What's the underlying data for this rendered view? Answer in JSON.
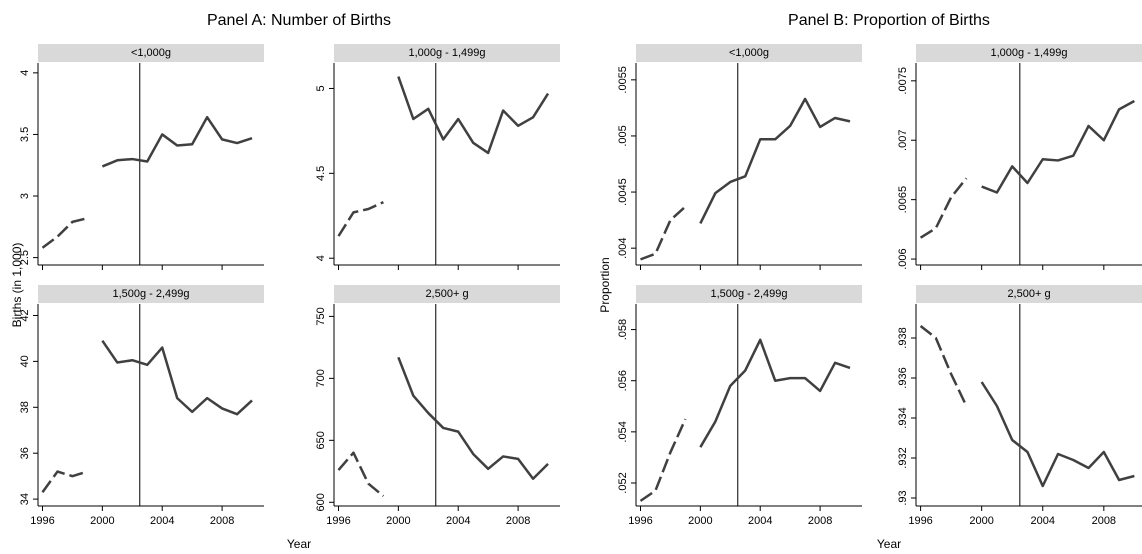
{
  "panels": [
    {
      "title": "Panel A: Number of Births",
      "ylabel": "Births (in 1,000)",
      "xlabel": "Year"
    },
    {
      "title": "Panel B: Proportion of Births",
      "ylabel": "Proportion",
      "xlabel": "Year"
    }
  ],
  "chart_data": [
    {
      "type": "line",
      "title": "<1,000g",
      "x": [
        1996,
        1997,
        1998,
        1999,
        2000,
        2001,
        2002,
        2003,
        2004,
        2005,
        2006,
        2007,
        2008,
        2009,
        2010
      ],
      "series": [
        {
          "color": "#404040",
          "dash": true,
          "values": [
            2.58,
            2.67,
            2.79,
            2.82,
            null,
            null,
            null,
            null,
            null,
            null,
            null,
            null,
            null,
            null,
            null
          ]
        },
        {
          "color": "#404040",
          "values": [
            null,
            null,
            null,
            null,
            3.24,
            3.29,
            3.3,
            3.28,
            3.5,
            3.41,
            3.42,
            3.64,
            3.46,
            3.43,
            3.47
          ]
        }
      ],
      "xlim": [
        1995.7,
        2010.8
      ],
      "xticks": [
        1996,
        2000,
        2004,
        2008
      ],
      "ylim": [
        2.44,
        4.08
      ],
      "yticks": [
        2.5,
        3,
        3.5,
        4
      ],
      "vline": 2002.5
    },
    {
      "type": "line",
      "title": "1,000g - 1,499g",
      "x": [
        1996,
        1997,
        1998,
        1999,
        2000,
        2001,
        2002,
        2003,
        2004,
        2005,
        2006,
        2007,
        2008,
        2009,
        2010
      ],
      "series": [
        {
          "color": "#404040",
          "dash": true,
          "values": [
            4.13,
            4.27,
            4.29,
            4.33,
            null,
            null,
            null,
            null,
            null,
            null,
            null,
            null,
            null,
            null,
            null
          ]
        },
        {
          "color": "#404040",
          "values": [
            null,
            null,
            null,
            null,
            5.07,
            4.82,
            4.88,
            4.7,
            4.82,
            4.68,
            4.62,
            4.87,
            4.78,
            4.83,
            4.97
          ]
        }
      ],
      "xlim": [
        1995.7,
        2010.8
      ],
      "xticks": [
        1996,
        2000,
        2004,
        2008
      ],
      "ylim": [
        3.96,
        5.15
      ],
      "yticks": [
        4,
        4.5,
        5
      ],
      "vline": 2002.5
    },
    {
      "type": "line",
      "title": "1,500g - 2,499g",
      "x": [
        1996,
        1997,
        1998,
        1999,
        2000,
        2001,
        2002,
        2003,
        2004,
        2005,
        2006,
        2007,
        2008,
        2009,
        2010
      ],
      "series": [
        {
          "color": "#404040",
          "dash": true,
          "values": [
            34.3,
            35.2,
            35.0,
            35.2,
            null,
            null,
            null,
            null,
            null,
            null,
            null,
            null,
            null,
            null,
            null
          ]
        },
        {
          "color": "#404040",
          "values": [
            null,
            null,
            null,
            null,
            40.9,
            39.95,
            40.05,
            39.85,
            40.6,
            38.4,
            37.8,
            38.4,
            37.95,
            37.7,
            38.3
          ]
        }
      ],
      "xlim": [
        1995.7,
        2010.8
      ],
      "xticks": [
        1996,
        2000,
        2004,
        2008
      ],
      "ylim": [
        33.7,
        42.5
      ],
      "yticks": [
        34,
        36,
        38,
        40,
        42
      ],
      "vline": 2002.5
    },
    {
      "type": "line",
      "title": "2,500+ g",
      "x": [
        1996,
        1997,
        1998,
        1999,
        2000,
        2001,
        2002,
        2003,
        2004,
        2005,
        2006,
        2007,
        2008,
        2009,
        2010
      ],
      "series": [
        {
          "color": "#404040",
          "dash": true,
          "values": [
            626,
            640,
            615,
            605,
            null,
            null,
            null,
            null,
            null,
            null,
            null,
            null,
            null,
            null,
            null
          ]
        },
        {
          "color": "#404040",
          "values": [
            null,
            null,
            null,
            null,
            717,
            686,
            672,
            660,
            657,
            639,
            627,
            637,
            635,
            619,
            631
          ]
        }
      ],
      "xlim": [
        1995.7,
        2010.8
      ],
      "xticks": [
        1996,
        2000,
        2004,
        2008
      ],
      "ylim": [
        597,
        760
      ],
      "yticks": [
        600,
        650,
        700,
        750
      ],
      "vline": 2002.5
    },
    {
      "type": "line",
      "title": "<1,000g",
      "x": [
        1996,
        1997,
        1998,
        1999,
        2000,
        2001,
        2002,
        2003,
        2004,
        2005,
        2006,
        2007,
        2008,
        2009,
        2010
      ],
      "series": [
        {
          "color": "#404040",
          "dash": true,
          "values": [
            0.0039,
            0.00395,
            0.00425,
            0.00437,
            null,
            null,
            null,
            null,
            null,
            null,
            null,
            null,
            null,
            null,
            null
          ]
        },
        {
          "color": "#404040",
          "values": [
            null,
            null,
            null,
            null,
            0.00422,
            0.00449,
            0.00459,
            0.00464,
            0.00497,
            0.00497,
            0.00509,
            0.00533,
            0.00508,
            0.00516,
            0.00513
          ]
        }
      ],
      "xlim": [
        1995.7,
        2010.8
      ],
      "xticks": [
        1996,
        2000,
        2004,
        2008
      ],
      "ylim": [
        0.00385,
        0.00565
      ],
      "yticks": [
        {
          "value": 0.004,
          "label": ".004"
        },
        {
          "value": 0.0045,
          "label": ".0045"
        },
        {
          "value": 0.005,
          "label": ".005"
        },
        {
          "value": 0.0055,
          "label": ".0055"
        }
      ],
      "vline": 2002.5
    },
    {
      "type": "line",
      "title": "1,000g - 1,499g",
      "x": [
        1996,
        1997,
        1998,
        1999,
        2000,
        2001,
        2002,
        2003,
        2004,
        2005,
        2006,
        2007,
        2008,
        2009,
        2010
      ],
      "series": [
        {
          "color": "#404040",
          "dash": true,
          "values": [
            0.00618,
            0.00626,
            0.00652,
            0.00668,
            null,
            null,
            null,
            null,
            null,
            null,
            null,
            null,
            null,
            null,
            null
          ]
        },
        {
          "color": "#404040",
          "values": [
            null,
            null,
            null,
            null,
            0.00661,
            0.00656,
            0.00678,
            0.00664,
            0.00684,
            0.00683,
            0.00687,
            0.00712,
            0.007,
            0.00726,
            0.00733
          ]
        }
      ],
      "xlim": [
        1995.7,
        2010.5
      ],
      "xticks": [
        1996,
        2000,
        2004,
        2008
      ],
      "ylim": [
        0.00595,
        0.00765
      ],
      "yticks": [
        {
          "value": 0.006,
          "label": ".006"
        },
        {
          "value": 0.0065,
          "label": ".0065"
        },
        {
          "value": 0.007,
          "label": ".007"
        },
        {
          "value": 0.0075,
          "label": ".0075"
        }
      ],
      "vline": 2002.5
    },
    {
      "type": "line",
      "title": "1,500g - 2,499g",
      "x": [
        1996,
        1997,
        1998,
        1999,
        2000,
        2001,
        2002,
        2003,
        2004,
        2005,
        2006,
        2007,
        2008,
        2009,
        2010
      ],
      "series": [
        {
          "color": "#404040",
          "dash": true,
          "values": [
            0.0513,
            0.0517,
            0.0532,
            0.0545,
            null,
            null,
            null,
            null,
            null,
            null,
            null,
            null,
            null,
            null,
            null
          ]
        },
        {
          "color": "#404040",
          "values": [
            null,
            null,
            null,
            null,
            0.0534,
            0.0544,
            0.0558,
            0.0564,
            0.0576,
            0.056,
            0.0561,
            0.0561,
            0.0556,
            0.0567,
            0.0565
          ]
        }
      ],
      "xlim": [
        1995.7,
        2010.8
      ],
      "xticks": [
        1996,
        2000,
        2004,
        2008
      ],
      "ylim": [
        0.0511,
        0.059
      ],
      "yticks": [
        {
          "value": 0.052,
          "label": ".052"
        },
        {
          "value": 0.054,
          "label": ".054"
        },
        {
          "value": 0.056,
          "label": ".056"
        },
        {
          "value": 0.058,
          "label": ".058"
        }
      ],
      "vline": 2002.5
    },
    {
      "type": "line",
      "title": "2,500+ g",
      "x": [
        1996,
        1997,
        1998,
        1999,
        2000,
        2001,
        2002,
        2003,
        2004,
        2005,
        2006,
        2007,
        2008,
        2009,
        2010
      ],
      "series": [
        {
          "color": "#404040",
          "dash": true,
          "values": [
            0.9386,
            0.938,
            0.9362,
            0.9346,
            null,
            null,
            null,
            null,
            null,
            null,
            null,
            null,
            null,
            null,
            null
          ]
        },
        {
          "color": "#404040",
          "values": [
            null,
            null,
            null,
            null,
            0.9358,
            0.9346,
            0.9329,
            0.9323,
            0.9306,
            0.9322,
            0.9319,
            0.9315,
            0.9323,
            0.9309,
            0.9311
          ]
        }
      ],
      "xlim": [
        1995.7,
        2010.5
      ],
      "xticks": [
        1996,
        2000,
        2004,
        2008
      ],
      "ylim": [
        0.9296,
        0.9397
      ],
      "yticks": [
        {
          "value": 0.93,
          "label": ".93"
        },
        {
          "value": 0.932,
          "label": ".932"
        },
        {
          "value": 0.934,
          "label": ".934"
        },
        {
          "value": 0.936,
          "label": ".936"
        },
        {
          "value": 0.938,
          "label": ".938"
        }
      ],
      "vline": 2002.5
    }
  ]
}
